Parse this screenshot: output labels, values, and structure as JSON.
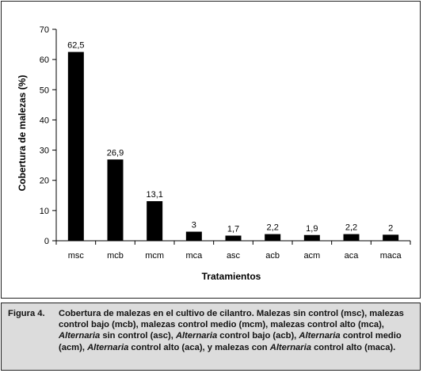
{
  "chart_data": {
    "type": "bar",
    "categories": [
      "msc",
      "mcb",
      "mcm",
      "mca",
      "asc",
      "acb",
      "acm",
      "aca",
      "maca"
    ],
    "values": [
      62.5,
      26.9,
      13.1,
      3,
      1.7,
      2.2,
      1.9,
      2.2,
      2
    ],
    "data_labels": [
      "62,5",
      "26,9",
      "13,1",
      "3",
      "1,7",
      "2,2",
      "1,9",
      "2,2",
      "2"
    ],
    "title": "",
    "xlabel": "Tratamientos",
    "ylabel": "Cobertura de malezas (%)",
    "ylim": [
      0,
      70
    ],
    "yticks": [
      0,
      10,
      20,
      30,
      40,
      50,
      60,
      70
    ],
    "bar_color": "#000000",
    "grid": false,
    "legend": "none"
  },
  "caption": {
    "label": "Figura 4.",
    "runs": [
      {
        "text": "Cobertura de malezas en el cultivo de cilantro. Malezas sin control (msc), malezas control bajo (mcb), malezas control medio (mcm), malezas control alto (mca), ",
        "italic": false
      },
      {
        "text": "Alternaria",
        "italic": true
      },
      {
        "text": " sin control (asc), ",
        "italic": false
      },
      {
        "text": "Alternaria",
        "italic": true
      },
      {
        "text": " control bajo (acb), ",
        "italic": false
      },
      {
        "text": "Alternaria",
        "italic": true
      },
      {
        "text": " control medio (acm), ",
        "italic": false
      },
      {
        "text": "Alternaria",
        "italic": true
      },
      {
        "text": " control alto (aca), y malezas con ",
        "italic": false
      },
      {
        "text": "Alternaria",
        "italic": true
      },
      {
        "text": " control alto (maca).",
        "italic": false
      }
    ]
  }
}
